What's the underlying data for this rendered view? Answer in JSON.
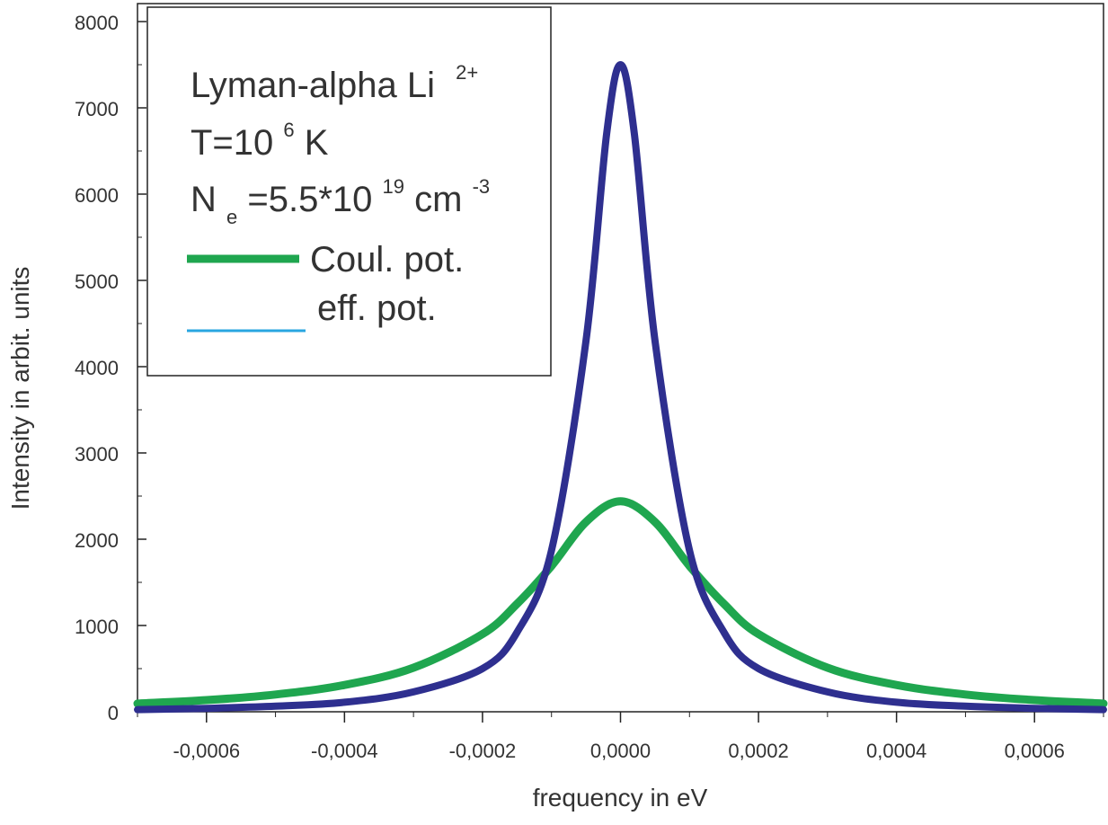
{
  "chart_data": {
    "type": "line",
    "xlabel": "frequency in eV",
    "ylabel": "Intensity in arbit. units",
    "xlim": [
      -0.0007,
      0.0007
    ],
    "ylim": [
      0,
      8000
    ],
    "x_ticks": [
      -0.0006,
      -0.0004,
      -0.0002,
      0.0,
      0.0002,
      0.0004,
      0.0006
    ],
    "x_tick_labels": [
      "-0,0006",
      "-0,0004",
      "-0,0002",
      "0,0000",
      "0,0002",
      "0,0004",
      "0,0006"
    ],
    "y_ticks": [
      0,
      1000,
      2000,
      3000,
      4000,
      5000,
      6000,
      7000,
      8000
    ],
    "y_tick_labels": [
      "0",
      "1000",
      "2000",
      "3000",
      "4000",
      "5000",
      "6000",
      "7000",
      "8000"
    ],
    "legend": {
      "title_line1": "Lyman-alpha Li",
      "title_line1_sup": "2+",
      "title_line2_base": "T=10",
      "title_line2_sup": "6",
      "title_line2_unit": "K",
      "title_line3_base": "N",
      "title_line3_sub": "e",
      "title_line3_value": "=5.5*10",
      "title_line3_sup": "19",
      "title_line3_unit": "cm",
      "title_line3_unit_sup": "-3",
      "entries": [
        "Coul. pot.",
        "eff. pot."
      ],
      "placement": "top-left"
    },
    "series": [
      {
        "name": "Coul. pot.",
        "color": "#1fa64f",
        "x": [
          -0.0007,
          -0.0006,
          -0.0005,
          -0.0004,
          -0.0003,
          -0.0002,
          -0.00015,
          -0.0001,
          -5e-05,
          0.0,
          5e-05,
          0.0001,
          0.00015,
          0.0002,
          0.0003,
          0.0004,
          0.0005,
          0.0006,
          0.0007
        ],
        "values": [
          95,
          135,
          200,
          310,
          510,
          900,
          1250,
          1690,
          2200,
          2440,
          2200,
          1690,
          1250,
          900,
          510,
          310,
          200,
          135,
          95
        ]
      },
      {
        "name": "eff. pot.",
        "color": "#2e2f8f",
        "x": [
          -0.0007,
          -0.0006,
          -0.0005,
          -0.0004,
          -0.0003,
          -0.0002,
          -0.00015,
          -0.0001,
          -5e-05,
          -2e-05,
          0.0,
          2e-05,
          5e-05,
          0.0001,
          0.00015,
          0.0002,
          0.0003,
          0.0004,
          0.0005,
          0.0006,
          0.0007
        ],
        "values": [
          25,
          40,
          65,
          110,
          230,
          500,
          920,
          1870,
          4300,
          6700,
          7500,
          6700,
          4300,
          1870,
          920,
          500,
          230,
          110,
          65,
          40,
          25
        ]
      }
    ]
  }
}
